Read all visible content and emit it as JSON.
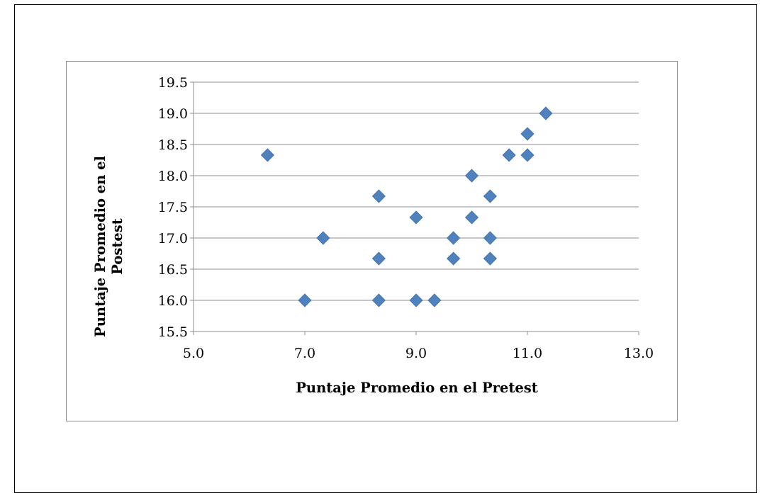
{
  "chart_data": {
    "type": "scatter",
    "title": "",
    "xlabel": "Puntaje Promedio en el Pretest",
    "ylabel_lines": [
      "Puntaje Promedio en el",
      "Postest"
    ],
    "xlim": [
      5.0,
      13.0
    ],
    "ylim": [
      15.5,
      19.5
    ],
    "x_ticks": [
      "5.0",
      "7.0",
      "9.0",
      "11.0",
      "13.0"
    ],
    "y_ticks": [
      "15.5",
      "16.0",
      "16.5",
      "17.0",
      "17.5",
      "18.0",
      "18.5",
      "19.0",
      "19.5"
    ],
    "x_tick_values": [
      5,
      7,
      9,
      11,
      13
    ],
    "y_tick_values": [
      15.5,
      16,
      16.5,
      17,
      17.5,
      18,
      18.5,
      19,
      19.5
    ],
    "grid": "horizontal",
    "legend": "none",
    "marker": "diamond",
    "marker_color": "#4F81BD",
    "series": [
      {
        "points": [
          {
            "x": 6.33,
            "y": 18.33
          },
          {
            "x": 7.0,
            "y": 16.0
          },
          {
            "x": 7.33,
            "y": 17.0
          },
          {
            "x": 8.33,
            "y": 17.67
          },
          {
            "x": 8.33,
            "y": 16.67
          },
          {
            "x": 8.33,
            "y": 16.0
          },
          {
            "x": 9.0,
            "y": 17.33
          },
          {
            "x": 9.0,
            "y": 16.0
          },
          {
            "x": 9.33,
            "y": 16.0
          },
          {
            "x": 9.67,
            "y": 17.0
          },
          {
            "x": 9.67,
            "y": 16.67
          },
          {
            "x": 10.0,
            "y": 18.0
          },
          {
            "x": 10.0,
            "y": 17.33
          },
          {
            "x": 10.33,
            "y": 17.67
          },
          {
            "x": 10.33,
            "y": 17.0
          },
          {
            "x": 10.33,
            "y": 16.67
          },
          {
            "x": 10.67,
            "y": 18.33
          },
          {
            "x": 11.0,
            "y": 18.67
          },
          {
            "x": 11.0,
            "y": 18.33
          },
          {
            "x": 11.33,
            "y": 19.0
          }
        ]
      }
    ]
  }
}
